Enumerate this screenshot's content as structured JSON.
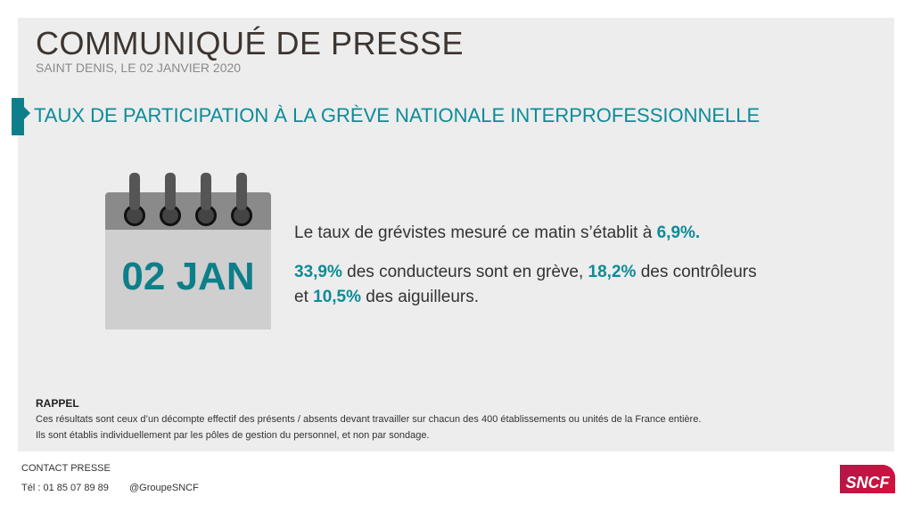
{
  "header": {
    "title": "COMMUNIQUÉ DE PRESSE",
    "subtitle": "SAINT DENIS, LE 02 JANVIER 2020"
  },
  "section": {
    "heading": "TAUX DE PARTICIPATION À LA GRÈVE NATIONALE INTERPROFESSIONNELLE"
  },
  "calendar": {
    "date": "02 JAN",
    "icon": "calendar-icon"
  },
  "stats": {
    "line1_pre": "Le taux de grévistes mesuré ce matin s’établit à ",
    "line1_value": "6,9%.",
    "conducteurs": "33,9%",
    "t1": " des conducteurs sont en grève, ",
    "controleurs": "18,2%",
    "t2": " des contrôleurs",
    "t3": "et ",
    "aiguilleurs": "10,5%",
    "t4": " des aiguilleurs."
  },
  "rappel": {
    "title": "RAPPEL",
    "line1": "Ces résultats sont ceux d’un décompte effectif des présents / absents devant travailler sur chacun des 400 établissements ou unités de la France entière.",
    "line2": "Ils sont établis individuellement par les pôles de gestion du personnel, et non par sondage."
  },
  "contact": {
    "label": "CONTACT PRESSE",
    "phone": "Tél : 01 85 07 89 89",
    "twitter": "@GroupeSNCF"
  },
  "logo": {
    "text": "SNCF"
  },
  "colors": {
    "accent": "#0b8c98",
    "brand": "#c8163f"
  }
}
